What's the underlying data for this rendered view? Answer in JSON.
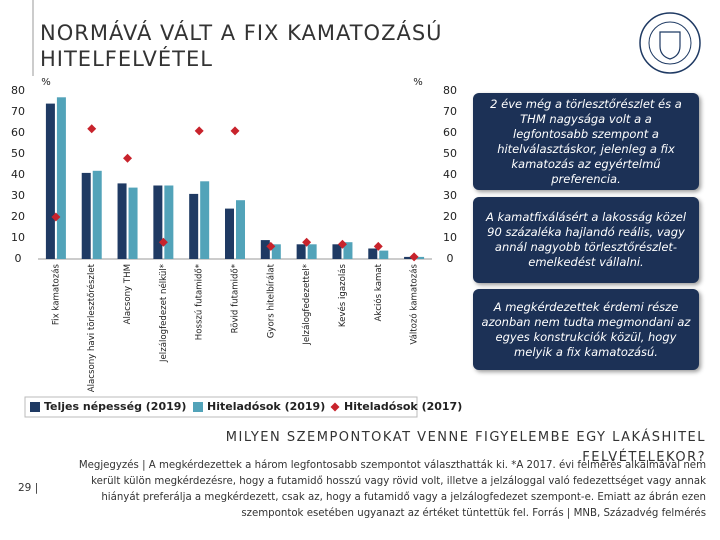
{
  "header": {
    "title": "NORMÁVÁ VÁLT A FIX KAMATOZÁSÚ HITELFELVÉTEL"
  },
  "chart_data": {
    "type": "bar",
    "y_label": "%",
    "y2_label": "%",
    "categories": [
      "Fix kamatozás",
      "Alacsony havi törlesztőrészlet",
      "Alacsony THM",
      "Jelzálogfedezet nélkül*",
      "Hosszú futamidő*",
      "Rövid futamidő*",
      "Gyors hitelbírálat",
      "Jelzálogfedezettel*",
      "Kevés igazolás",
      "Akciós kamat",
      "Változó kamatozás"
    ],
    "series": [
      {
        "name": "Teljes népesség (2019)",
        "color": "#1f3a63",
        "values": [
          74,
          41,
          36,
          35,
          31,
          24,
          9,
          7,
          7,
          5,
          1
        ]
      },
      {
        "name": "Hiteladósok (2019)",
        "color": "#52a3b9",
        "values": [
          77,
          42,
          34,
          35,
          37,
          28,
          7,
          7,
          8,
          4,
          1
        ]
      },
      {
        "name": "Hiteladósok (2017)",
        "color": "#c8232c",
        "marker": "diamond",
        "axis": "y2",
        "values": [
          20,
          62,
          48,
          8,
          61,
          61,
          6,
          8,
          7,
          6,
          1
        ]
      }
    ],
    "ylim": [
      0,
      80
    ],
    "yticks": [
      0,
      10,
      20,
      30,
      40,
      50,
      60,
      70,
      80
    ],
    "y2lim": [
      0,
      80
    ],
    "y2ticks": [
      0,
      10,
      20,
      30,
      40,
      50,
      60,
      70,
      80
    ]
  },
  "callouts": [
    "2 éve még a törlesztőrészlet és a THM nagysága volt a a legfontosabb szempont a hitelválasztáskor, jelenleg a fix kamatozás az egyértelmű preferencia.",
    "A kamatfixálásért a lakosság közel 90 százaléka hajlandó reális, vagy annál nagyobb törlesztőrészlet-emelkedést vállalni.",
    "A megkérdezettek érdemi része azonban nem tudta megmondani az egyes konstrukciók közül, hogy melyik a fix kamatozású."
  ],
  "question": "MILYEN SZEMPONTOKAT VENNE FIGYELEMBE EGY LAKÁSHITEL FELVÉTELEKOR?",
  "note": "Megjegyzés | A megkérdezettek a három legfontosabb szempontot választhatták ki. *A 2017. évi felmérés alkalmával nem került külön megkérdezésre, hogy a futamidő hosszú vagy rövid volt, illetve a jelzáloggal való fedezettséget vagy annak hiányát preferálja a megkérdezett, csak az, hogy a futamidő vagy a jelzálogfedezet szempont-e. Emiatt az ábrán ezen szempontok esetében ugyanazt az értéket tüntettük fel. Forrás | MNB, Századvég felmérés",
  "page_number": "29 |"
}
